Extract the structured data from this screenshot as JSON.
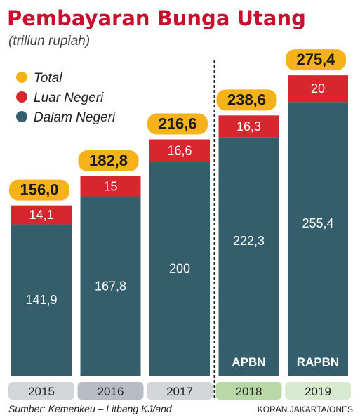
{
  "title": "Pembayaran Bunga Utang",
  "subtitle": "(triliun rupiah)",
  "legend": [
    {
      "label": "Total",
      "color": "#f6b21b"
    },
    {
      "label": "Luar Negeri",
      "color": "#d7262d"
    },
    {
      "label": "Dalam Negeri",
      "color": "#355e6c"
    }
  ],
  "chart_data": {
    "type": "bar",
    "stacked": true,
    "categories": [
      "2015",
      "2016",
      "2017",
      "2018",
      "2019"
    ],
    "series": [
      {
        "name": "Dalam Negeri",
        "values": [
          141.9,
          167.8,
          200,
          222.3,
          255.4
        ],
        "labels": [
          "141,9",
          "167,8",
          "200",
          "222,3",
          "255,4"
        ]
      },
      {
        "name": "Luar Negeri",
        "values": [
          14.1,
          15,
          16.6,
          16.3,
          20
        ],
        "labels": [
          "14,1",
          "15",
          "16,6",
          "16,3",
          "20"
        ]
      }
    ],
    "totals": [
      156.0,
      182.8,
      216.6,
      238.6,
      275.4
    ],
    "total_labels": [
      "156,0",
      "182,8",
      "216,6",
      "238,6",
      "275,4"
    ],
    "bar_status": [
      "",
      "",
      "",
      "APBN",
      "RAPBN"
    ],
    "colors": {
      "dalam": "#355e6c",
      "luar": "#d7262d",
      "total": "#f6b21b"
    },
    "year_box_colors": [
      "#d2d6d9",
      "#b6bcc1",
      "#d2d6d9",
      "#b8d8a8",
      "#d8ead0"
    ],
    "divider_after_index": 2
  },
  "footer": {
    "source": "Sumber: Kemenkeu – Litbang KJ/and",
    "credit": "KORAN JAKARTA/ONES"
  }
}
